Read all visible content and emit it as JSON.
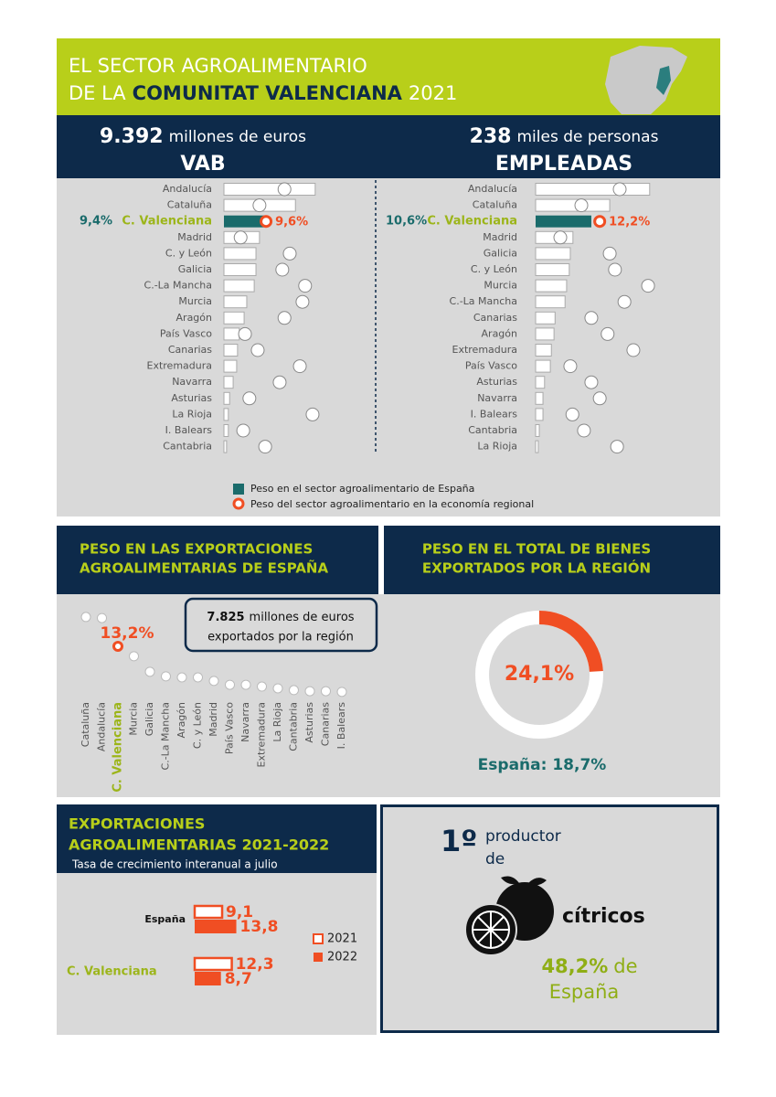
{
  "header": {
    "line1": "EL SECTOR AGROALIMENTARIO",
    "line2_pre": "DE LA",
    "line2_bold": "COMUNITAT VALENCIANA",
    "line2_year": "2021"
  },
  "vab": {
    "value": "9.392",
    "unit": "millones de euros",
    "title": "VAB",
    "chart": {
      "type": "bar-dot",
      "categories": [
        "Andalucía",
        "Cataluña",
        "C. Valenciana",
        "Madrid",
        "C. y León",
        "Galicia",
        "C.-La Mancha",
        "Murcia",
        "Aragón",
        "País Vasco",
        "Canarias",
        "Extremadura",
        "Navarra",
        "Asturias",
        "La Rioja",
        "I. Balears",
        "Cantabria"
      ],
      "bars": [
        20.8,
        16.3,
        9.4,
        8.1,
        7.3,
        7.3,
        6.9,
        5.2,
        4.6,
        3.5,
        3.1,
        2.9,
        2.1,
        1.3,
        1.0,
        1.0,
        0.6
      ],
      "bar_labels": [
        null,
        null,
        "9,4%",
        null,
        null,
        null,
        null,
        null,
        null,
        null,
        null,
        null,
        null,
        null,
        null,
        null,
        null
      ],
      "dots": [
        13.8,
        8.1,
        9.6,
        3.8,
        15.0,
        13.3,
        18.5,
        17.9,
        13.8,
        4.8,
        7.7,
        17.3,
        12.7,
        5.8,
        20.2,
        4.4,
        9.4
      ],
      "dot_labels": [
        null,
        null,
        "9,6%",
        null,
        null,
        null,
        null,
        null,
        null,
        null,
        null,
        null,
        null,
        null,
        null,
        null,
        null
      ],
      "highlight_index": 2,
      "xlim": [
        0,
        25
      ]
    }
  },
  "empleo": {
    "value": "238",
    "unit": "miles de personas",
    "title": "EMPLEADAS",
    "chart": {
      "type": "bar-dot",
      "categories": [
        "Andalucía",
        "Cataluña",
        "C. Valenciana",
        "Madrid",
        "Galicia",
        "C. y León",
        "Murcia",
        "C.-La Mancha",
        "Canarias",
        "Aragón",
        "Extremadura",
        "País Vasco",
        "Asturias",
        "Navarra",
        "I. Balears",
        "Cantabria",
        "La Rioja"
      ],
      "bars": [
        21.7,
        14.1,
        10.6,
        7.1,
        6.6,
        6.4,
        5.9,
        5.6,
        3.7,
        3.5,
        3.0,
        2.8,
        1.7,
        1.4,
        1.4,
        0.7,
        0.5
      ],
      "bar_labels": [
        null,
        null,
        "10,6%",
        null,
        null,
        null,
        null,
        null,
        null,
        null,
        null,
        null,
        null,
        null,
        null,
        null,
        null
      ],
      "dots": [
        16.0,
        8.7,
        12.2,
        4.7,
        14.1,
        15.1,
        21.4,
        16.9,
        10.6,
        13.7,
        18.6,
        6.6,
        10.6,
        12.2,
        7.0,
        9.2,
        15.5
      ],
      "dot_labels": [
        null,
        null,
        "12,2%",
        null,
        null,
        null,
        null,
        null,
        null,
        null,
        null,
        null,
        null,
        null,
        null,
        null,
        null
      ],
      "highlight_index": 2,
      "xlim": [
        0,
        25
      ]
    }
  },
  "legend": {
    "bar": "Peso en el sector agroalimentario de España",
    "dot": "Peso del sector agroalimentario en la economía regional"
  },
  "exports": {
    "title_line1": "PESO EN LAS EXPORTACIONES",
    "title_line2": "AGROALIMENTARIAS DE ESPAÑA",
    "callout": {
      "value": "7.825",
      "line1_rest": "millones de euros",
      "line2": "exportados por la región"
    },
    "chart": {
      "type": "dot-strip",
      "categories": [
        "Cataluña",
        "Andalucía",
        "C. Valenciana",
        "Murcia",
        "Galicia",
        "C.-La Mancha",
        "Aragón",
        "C. y León",
        "Madrid",
        "País Vasco",
        "Navarra",
        "Extremadura",
        "La Rioja",
        "Cantabria",
        "Asturias",
        "Canarias",
        "I. Balears"
      ],
      "values": [
        21.5,
        21.2,
        13.2,
        10.4,
        6.0,
        4.7,
        4.4,
        4.4,
        3.4,
        2.3,
        2.3,
        1.8,
        1.3,
        0.8,
        0.5,
        0.5,
        0.3
      ],
      "value_labels": [
        null,
        null,
        "13,2%",
        null,
        null,
        null,
        null,
        null,
        null,
        null,
        null,
        null,
        null,
        null,
        null,
        null,
        null
      ],
      "highlight_index": 2,
      "ylim": [
        0,
        22
      ]
    }
  },
  "region": {
    "title_line1": "PESO EN EL TOTAL DE BIENES",
    "title_line2": "EXPORTADOS POR LA REGIÓN",
    "chart": {
      "type": "donut",
      "value": 24.1,
      "value_label": "24,1%",
      "range": [
        0,
        100
      ]
    },
    "note": "España: 18,7%"
  },
  "growth": {
    "title_line1": "EXPORTACIONES",
    "title_line2": "AGROALIMENTARIAS 2021-2022",
    "subtitle": "Tasa de crecimiento interanual a julio",
    "chart": {
      "type": "bar",
      "categories": [
        "España",
        "C. Valenciana"
      ],
      "series": [
        {
          "name": "2021",
          "values": [
            9.1,
            12.3
          ],
          "value_labels": [
            "9,1",
            "12,3"
          ]
        },
        {
          "name": "2022",
          "values": [
            13.8,
            8.7
          ],
          "value_labels": [
            "13,8",
            "8,7"
          ]
        }
      ],
      "xlim": [
        0,
        15
      ]
    }
  },
  "citrus": {
    "rank": "1º",
    "word1": "productor",
    "word2": "de",
    "product": "cítricos",
    "share": "48,2%",
    "share_suffix": "de",
    "country": "España"
  }
}
